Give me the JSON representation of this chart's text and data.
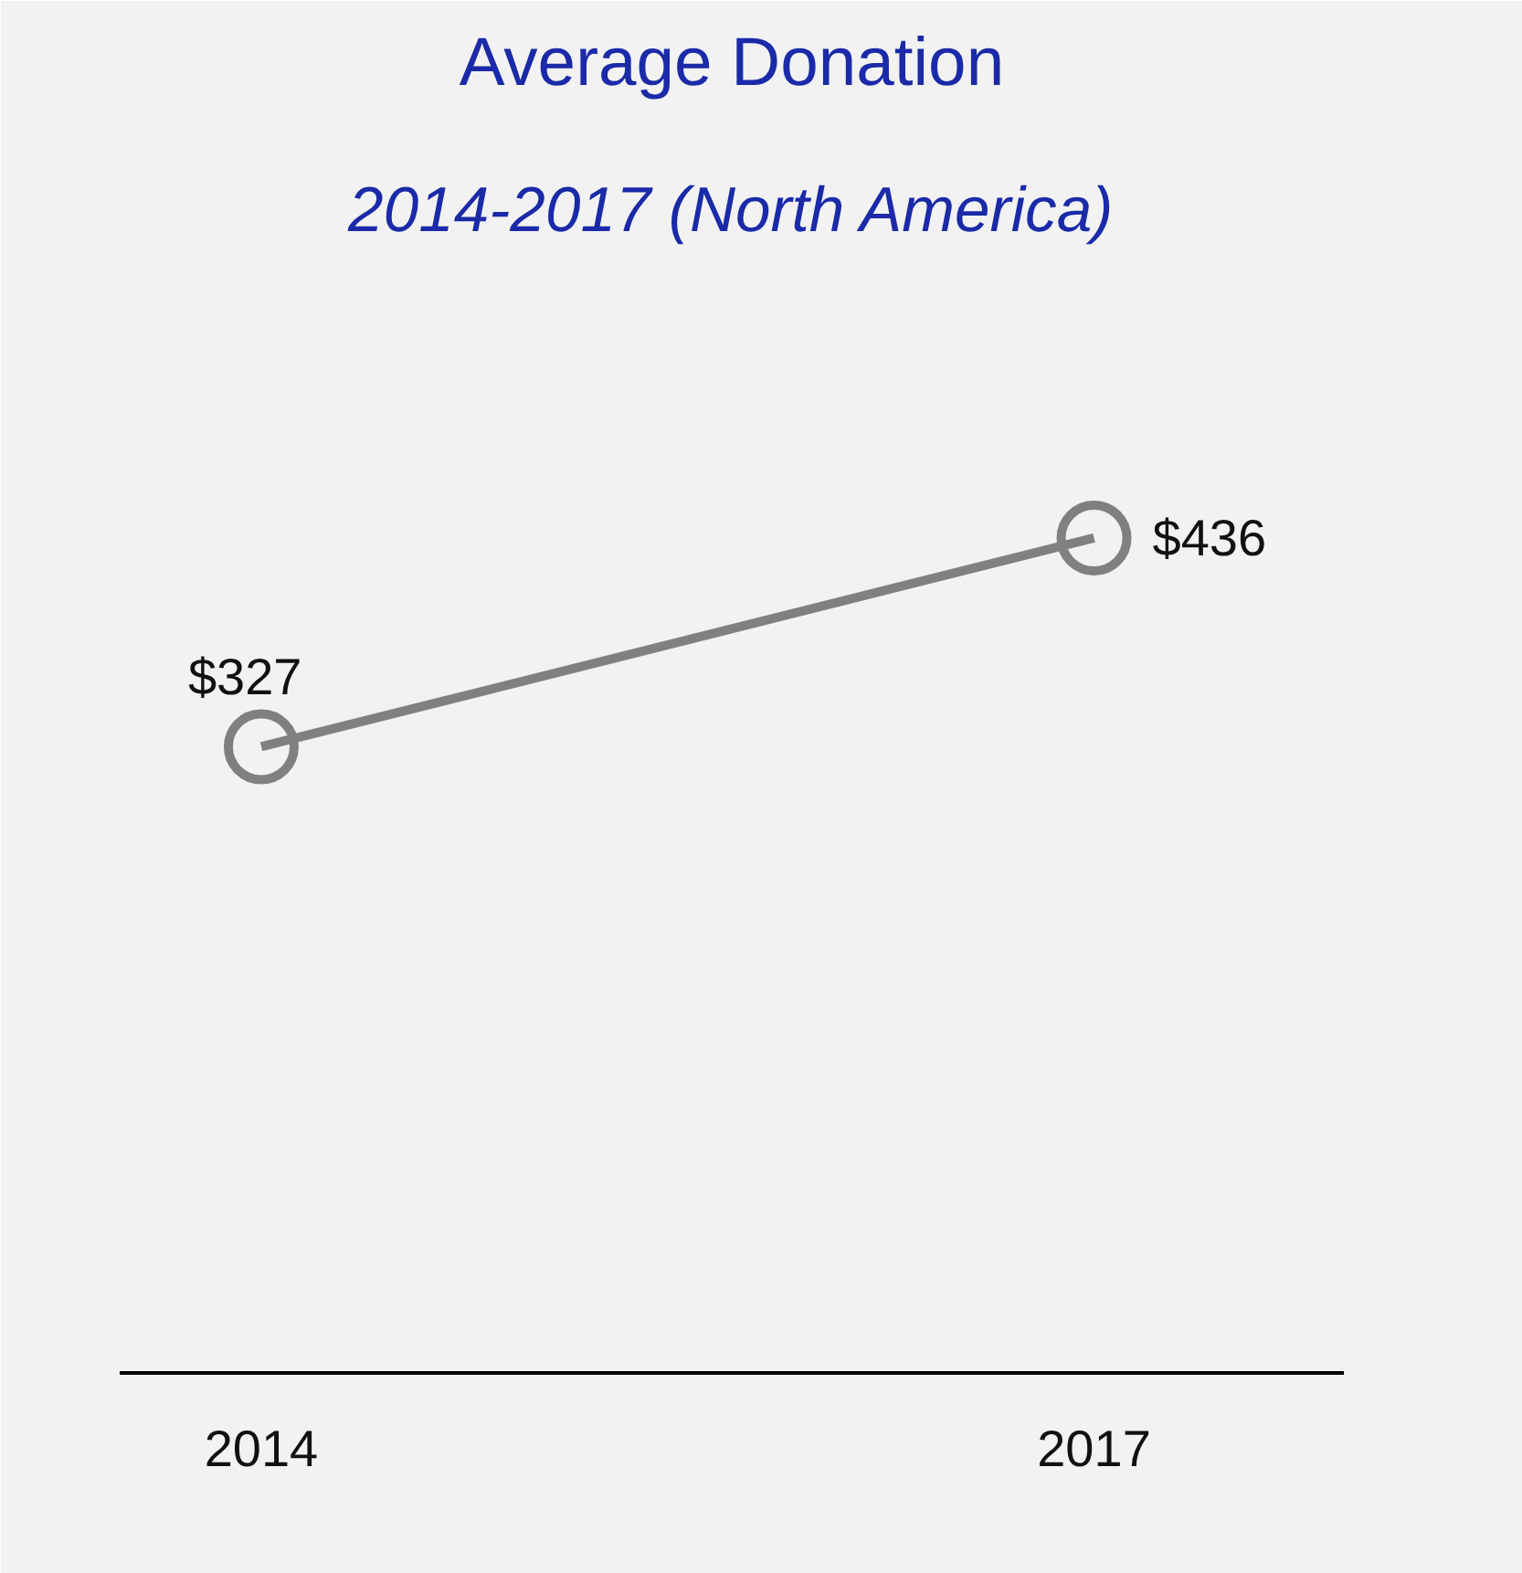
{
  "chart_data": {
    "type": "line",
    "title": "Average Donation",
    "subtitle": "2014-2017 (North America)",
    "categories": [
      "2014",
      "2017"
    ],
    "series": [
      {
        "color": "#808080",
        "values": [
          327,
          436
        ],
        "value_labels": [
          "$327",
          "$436"
        ]
      }
    ],
    "ylim": [
      0,
      560
    ],
    "tick_labels": "x",
    "grid": false,
    "marker": "circle",
    "line_style": "solid"
  }
}
